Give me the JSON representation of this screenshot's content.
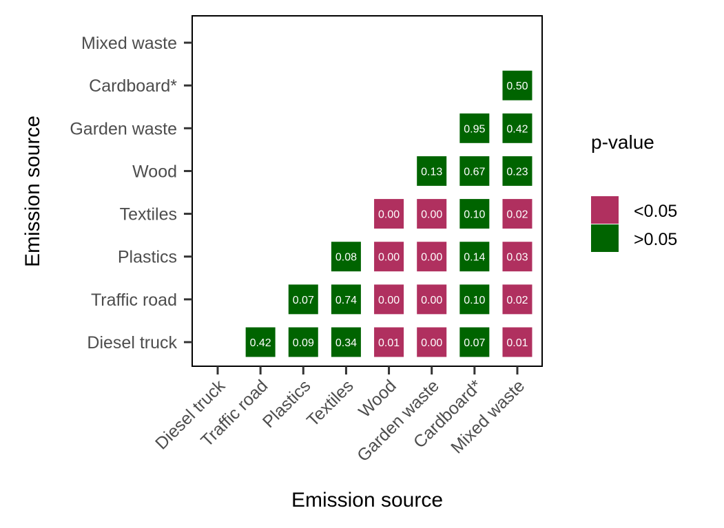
{
  "chart_data": {
    "type": "heatmap",
    "xlabel": "Emission source",
    "ylabel": "Emission source",
    "categories": [
      "Diesel truck",
      "Traffic road",
      "Plastics",
      "Textiles",
      "Wood",
      "Garden waste",
      "Cardboard*",
      "Mixed waste"
    ],
    "cells": [
      {
        "x": "Traffic road",
        "y": "Diesel truck",
        "value": "0.42",
        "group": ">0.05"
      },
      {
        "x": "Plastics",
        "y": "Diesel truck",
        "value": "0.09",
        "group": ">0.05"
      },
      {
        "x": "Textiles",
        "y": "Diesel truck",
        "value": "0.34",
        "group": ">0.05"
      },
      {
        "x": "Wood",
        "y": "Diesel truck",
        "value": "0.01",
        "group": "<0.05"
      },
      {
        "x": "Garden waste",
        "y": "Diesel truck",
        "value": "0.00",
        "group": "<0.05"
      },
      {
        "x": "Cardboard*",
        "y": "Diesel truck",
        "value": "0.07",
        "group": ">0.05"
      },
      {
        "x": "Mixed waste",
        "y": "Diesel truck",
        "value": "0.01",
        "group": "<0.05"
      },
      {
        "x": "Plastics",
        "y": "Traffic road",
        "value": "0.07",
        "group": ">0.05"
      },
      {
        "x": "Textiles",
        "y": "Traffic road",
        "value": "0.74",
        "group": ">0.05"
      },
      {
        "x": "Wood",
        "y": "Traffic road",
        "value": "0.00",
        "group": "<0.05"
      },
      {
        "x": "Garden waste",
        "y": "Traffic road",
        "value": "0.00",
        "group": "<0.05"
      },
      {
        "x": "Cardboard*",
        "y": "Traffic road",
        "value": "0.10",
        "group": ">0.05"
      },
      {
        "x": "Mixed waste",
        "y": "Traffic road",
        "value": "0.02",
        "group": "<0.05"
      },
      {
        "x": "Textiles",
        "y": "Plastics",
        "value": "0.08",
        "group": ">0.05"
      },
      {
        "x": "Wood",
        "y": "Plastics",
        "value": "0.00",
        "group": "<0.05"
      },
      {
        "x": "Garden waste",
        "y": "Plastics",
        "value": "0.00",
        "group": "<0.05"
      },
      {
        "x": "Cardboard*",
        "y": "Plastics",
        "value": "0.14",
        "group": ">0.05"
      },
      {
        "x": "Mixed waste",
        "y": "Plastics",
        "value": "0.03",
        "group": "<0.05"
      },
      {
        "x": "Wood",
        "y": "Textiles",
        "value": "0.00",
        "group": "<0.05"
      },
      {
        "x": "Garden waste",
        "y": "Textiles",
        "value": "0.00",
        "group": "<0.05"
      },
      {
        "x": "Cardboard*",
        "y": "Textiles",
        "value": "0.10",
        "group": ">0.05"
      },
      {
        "x": "Mixed waste",
        "y": "Textiles",
        "value": "0.02",
        "group": "<0.05"
      },
      {
        "x": "Garden waste",
        "y": "Wood",
        "value": "0.13",
        "group": ">0.05"
      },
      {
        "x": "Cardboard*",
        "y": "Wood",
        "value": "0.67",
        "group": ">0.05"
      },
      {
        "x": "Mixed waste",
        "y": "Wood",
        "value": "0.23",
        "group": ">0.05"
      },
      {
        "x": "Cardboard*",
        "y": "Garden waste",
        "value": "0.95",
        "group": ">0.05"
      },
      {
        "x": "Mixed waste",
        "y": "Garden waste",
        "value": "0.42",
        "group": ">0.05"
      },
      {
        "x": "Mixed waste",
        "y": "Cardboard*",
        "value": "0.50",
        "group": ">0.05"
      }
    ],
    "legend": {
      "title": "p-value",
      "position": "right",
      "items": [
        {
          "label": "<0.05",
          "color": "#b0305f"
        },
        {
          "label": ">0.05",
          "color": "#006400"
        }
      ]
    },
    "grid": false
  }
}
